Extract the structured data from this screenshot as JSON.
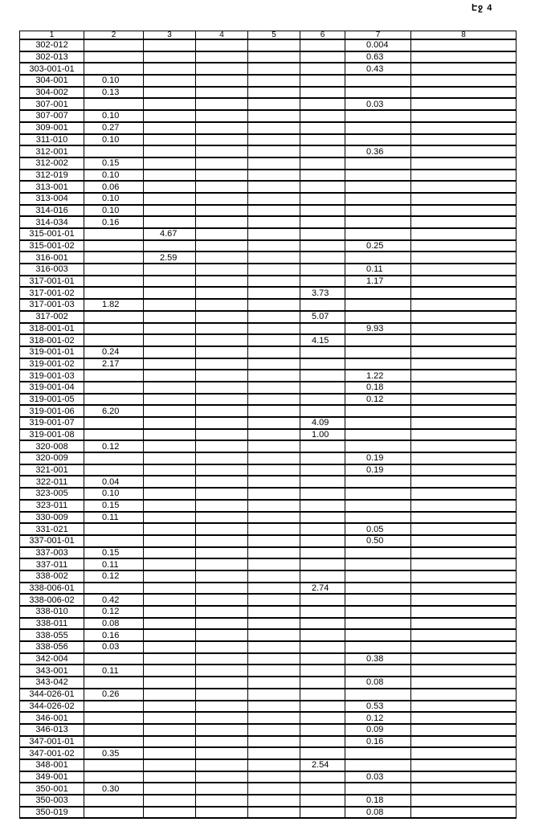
{
  "page_label": "Էջ 4",
  "table": {
    "headers": [
      "1",
      "2",
      "3",
      "4",
      "5",
      "6",
      "7",
      "8"
    ],
    "rows": [
      [
        "302-012",
        "",
        "",
        "",
        "",
        "",
        "0.004",
        ""
      ],
      [
        "302-013",
        "",
        "",
        "",
        "",
        "",
        "0.63",
        ""
      ],
      [
        "303-001-01",
        "",
        "",
        "",
        "",
        "",
        "0.43",
        ""
      ],
      [
        "304-001",
        "0.10",
        "",
        "",
        "",
        "",
        "",
        ""
      ],
      [
        "304-002",
        "0.13",
        "",
        "",
        "",
        "",
        "",
        ""
      ],
      [
        "307-001",
        "",
        "",
        "",
        "",
        "",
        "0.03",
        ""
      ],
      [
        "307-007",
        "0.10",
        "",
        "",
        "",
        "",
        "",
        ""
      ],
      [
        "309-001",
        "0.27",
        "",
        "",
        "",
        "",
        "",
        ""
      ],
      [
        "311-010",
        "0.10",
        "",
        "",
        "",
        "",
        "",
        ""
      ],
      [
        "312-001",
        "",
        "",
        "",
        "",
        "",
        "0.36",
        ""
      ],
      [
        "312-002",
        "0.15",
        "",
        "",
        "",
        "",
        "",
        ""
      ],
      [
        "312-019",
        "0.10",
        "",
        "",
        "",
        "",
        "",
        ""
      ],
      [
        "313-001",
        "0.06",
        "",
        "",
        "",
        "",
        "",
        ""
      ],
      [
        "313-004",
        "0.10",
        "",
        "",
        "",
        "",
        "",
        ""
      ],
      [
        "314-016",
        "0.10",
        "",
        "",
        "",
        "",
        "",
        ""
      ],
      [
        "314-034",
        "0.16",
        "",
        "",
        "",
        "",
        "",
        ""
      ],
      [
        "315-001-01",
        "",
        "4.67",
        "",
        "",
        "",
        "",
        ""
      ],
      [
        "315-001-02",
        "",
        "",
        "",
        "",
        "",
        "0.25",
        ""
      ],
      [
        "316-001",
        "",
        "2.59",
        "",
        "",
        "",
        "",
        ""
      ],
      [
        "316-003",
        "",
        "",
        "",
        "",
        "",
        "0.11",
        ""
      ],
      [
        "317-001-01",
        "",
        "",
        "",
        "",
        "",
        "1.17",
        ""
      ],
      [
        "317-001-02",
        "",
        "",
        "",
        "",
        "3.73",
        "",
        ""
      ],
      [
        "317-001-03",
        "1.82",
        "",
        "",
        "",
        "",
        "",
        ""
      ],
      [
        "317-002",
        "",
        "",
        "",
        "",
        "5.07",
        "",
        ""
      ],
      [
        "318-001-01",
        "",
        "",
        "",
        "",
        "",
        "9.93",
        ""
      ],
      [
        "318-001-02",
        "",
        "",
        "",
        "",
        "4.15",
        "",
        ""
      ],
      [
        "319-001-01",
        "0.24",
        "",
        "",
        "",
        "",
        "",
        ""
      ],
      [
        "319-001-02",
        "2.17",
        "",
        "",
        "",
        "",
        "",
        ""
      ],
      [
        "319-001-03",
        "",
        "",
        "",
        "",
        "",
        "1.22",
        ""
      ],
      [
        "319-001-04",
        "",
        "",
        "",
        "",
        "",
        "0.18",
        ""
      ],
      [
        "319-001-05",
        "",
        "",
        "",
        "",
        "",
        "0.12",
        ""
      ],
      [
        "319-001-06",
        "6.20",
        "",
        "",
        "",
        "",
        "",
        ""
      ],
      [
        "319-001-07",
        "",
        "",
        "",
        "",
        "4.09",
        "",
        ""
      ],
      [
        "319-001-08",
        "",
        "",
        "",
        "",
        "1.00",
        "",
        ""
      ],
      [
        "320-008",
        "0.12",
        "",
        "",
        "",
        "",
        "",
        ""
      ],
      [
        "320-009",
        "",
        "",
        "",
        "",
        "",
        "0.19",
        ""
      ],
      [
        "321-001",
        "",
        "",
        "",
        "",
        "",
        "0.19",
        ""
      ],
      [
        "322-011",
        "0.04",
        "",
        "",
        "",
        "",
        "",
        ""
      ],
      [
        "323-005",
        "0.10",
        "",
        "",
        "",
        "",
        "",
        ""
      ],
      [
        "323-011",
        "0.15",
        "",
        "",
        "",
        "",
        "",
        ""
      ],
      [
        "330-009",
        "0.11",
        "",
        "",
        "",
        "",
        "",
        ""
      ],
      [
        "331-021",
        "",
        "",
        "",
        "",
        "",
        "0.05",
        ""
      ],
      [
        "337-001-01",
        "",
        "",
        "",
        "",
        "",
        "0.50",
        ""
      ],
      [
        "337-003",
        "0.15",
        "",
        "",
        "",
        "",
        "",
        ""
      ],
      [
        "337-011",
        "0.11",
        "",
        "",
        "",
        "",
        "",
        ""
      ],
      [
        "338-002",
        "0.12",
        "",
        "",
        "",
        "",
        "",
        ""
      ],
      [
        "338-006-01",
        "",
        "",
        "",
        "",
        "2.74",
        "",
        ""
      ],
      [
        "338-006-02",
        "0.42",
        "",
        "",
        "",
        "",
        "",
        ""
      ],
      [
        "338-010",
        "0.12",
        "",
        "",
        "",
        "",
        "",
        ""
      ],
      [
        "338-011",
        "0.08",
        "",
        "",
        "",
        "",
        "",
        ""
      ],
      [
        "338-055",
        "0.16",
        "",
        "",
        "",
        "",
        "",
        ""
      ],
      [
        "338-056",
        "0.03",
        "",
        "",
        "",
        "",
        "",
        ""
      ],
      [
        "342-004",
        "",
        "",
        "",
        "",
        "",
        "0.38",
        ""
      ],
      [
        "343-001",
        "0.11",
        "",
        "",
        "",
        "",
        "",
        ""
      ],
      [
        "343-042",
        "",
        "",
        "",
        "",
        "",
        "0.08",
        ""
      ],
      [
        "344-026-01",
        "0.26",
        "",
        "",
        "",
        "",
        "",
        ""
      ],
      [
        "344-026-02",
        "",
        "",
        "",
        "",
        "",
        "0.53",
        ""
      ],
      [
        "346-001",
        "",
        "",
        "",
        "",
        "",
        "0.12",
        ""
      ],
      [
        "346-013",
        "",
        "",
        "",
        "",
        "",
        "0.09",
        ""
      ],
      [
        "347-001-01",
        "",
        "",
        "",
        "",
        "",
        "0.16",
        ""
      ],
      [
        "347-001-02",
        "0.35",
        "",
        "",
        "",
        "",
        "",
        ""
      ],
      [
        "348-001",
        "",
        "",
        "",
        "",
        "2.54",
        "",
        ""
      ],
      [
        "349-001",
        "",
        "",
        "",
        "",
        "",
        "0.03",
        ""
      ],
      [
        "350-001",
        "0.30",
        "",
        "",
        "",
        "",
        "",
        ""
      ],
      [
        "350-003",
        "",
        "",
        "",
        "",
        "",
        "0.18",
        ""
      ],
      [
        "350-019",
        "",
        "",
        "",
        "",
        "",
        "0.08",
        ""
      ]
    ]
  }
}
